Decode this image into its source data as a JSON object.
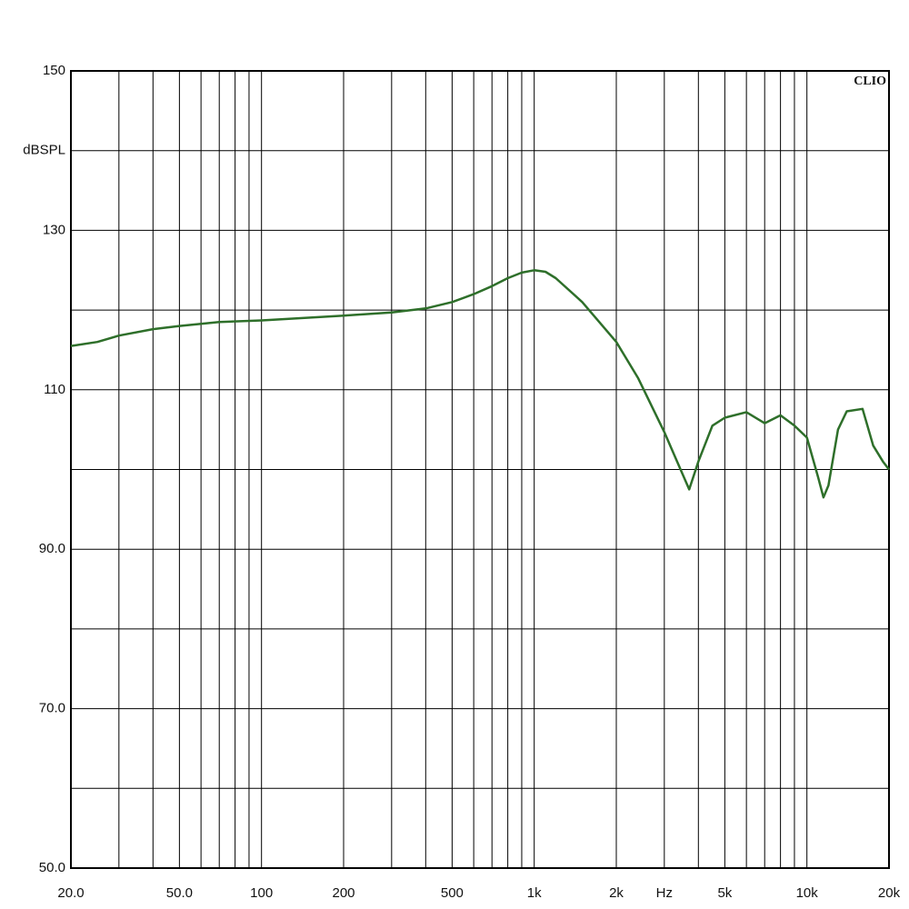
{
  "chart_data": {
    "type": "line",
    "annotation": "CLIO",
    "x": [
      20,
      25,
      30,
      40,
      50,
      70,
      100,
      200,
      300,
      400,
      500,
      600,
      700,
      800,
      900,
      1000,
      1100,
      1200,
      1500,
      2000,
      2400,
      3000,
      3700,
      4000,
      4500,
      5000,
      6000,
      7000,
      8000,
      9000,
      10000,
      11000,
      11500,
      12000,
      13000,
      14000,
      16000,
      17500,
      19000,
      20000
    ],
    "series": [
      {
        "color": "#2e6f2a",
        "values": [
          115.5,
          116,
          116.8,
          117.6,
          118,
          118.5,
          118.7,
          119.3,
          119.7,
          120.2,
          121,
          122,
          123,
          124,
          124.7,
          125,
          124.8,
          124,
          121,
          116,
          111.5,
          104.7,
          97.5,
          101,
          105.5,
          106.5,
          107.2,
          105.8,
          106.8,
          105.5,
          104,
          99,
          96.5,
          98,
          105,
          107.3,
          107.6,
          103,
          101,
          100
        ]
      }
    ],
    "xlim": [
      20,
      20000
    ],
    "log_x": true,
    "xticks": [
      {
        "value": 20,
        "label": "20.0"
      },
      {
        "value": 30,
        "label": null
      },
      {
        "value": 40,
        "label": null
      },
      {
        "value": 50,
        "label": "50.0"
      },
      {
        "value": 60,
        "label": null
      },
      {
        "value": 70,
        "label": null
      },
      {
        "value": 80,
        "label": null
      },
      {
        "value": 90,
        "label": null
      },
      100,
      200,
      {
        "value": 300,
        "label": null
      },
      {
        "value": 400,
        "label": null
      },
      500,
      {
        "value": 600,
        "label": null
      },
      {
        "value": 700,
        "label": null
      },
      {
        "value": 800,
        "label": null
      },
      {
        "value": 900,
        "label": null
      },
      {
        "value": 1000,
        "label": "1k"
      },
      {
        "value": 2000,
        "label": "2k"
      },
      {
        "value": 3000,
        "label": "Hz"
      },
      {
        "value": 4000,
        "label": null
      },
      {
        "value": 5000,
        "label": "5k"
      },
      {
        "value": 6000,
        "label": null
      },
      {
        "value": 7000,
        "label": null
      },
      {
        "value": 8000,
        "label": null
      },
      {
        "value": 9000,
        "label": null
      },
      {
        "value": 10000,
        "label": "10k"
      },
      {
        "value": 20000,
        "label": "20k"
      }
    ],
    "ylim": [
      50,
      150
    ],
    "yticks": [
      {
        "value": 50,
        "label": "50.0"
      },
      {
        "value": 60,
        "label": null
      },
      {
        "value": 70,
        "label": "70.0"
      },
      {
        "value": 80,
        "label": null
      },
      {
        "value": 90,
        "label": "90.0"
      },
      {
        "value": 100,
        "label": null
      },
      110,
      {
        "value": 120,
        "label": null
      },
      130,
      {
        "value": 140,
        "label": "dBSPL"
      },
      150
    ],
    "grid": true
  }
}
